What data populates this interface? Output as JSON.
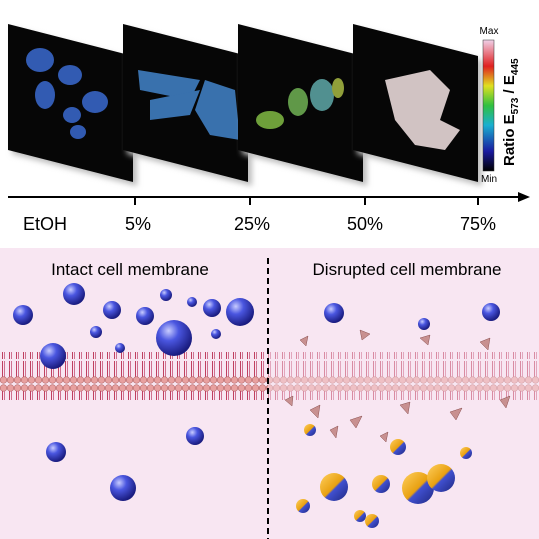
{
  "colorbar": {
    "max": "Max",
    "min": "Min",
    "label": {
      "prefix": "Ratio E",
      "sub1": "573",
      "middle": " / E",
      "sub2": "445"
    }
  },
  "axis": {
    "labels": [
      "EtOH",
      "5%",
      "25%",
      "50%",
      "75%"
    ]
  },
  "panels": {
    "left_title": "Intact cell membrane",
    "right_title": "Disrupted cell membrane"
  }
}
